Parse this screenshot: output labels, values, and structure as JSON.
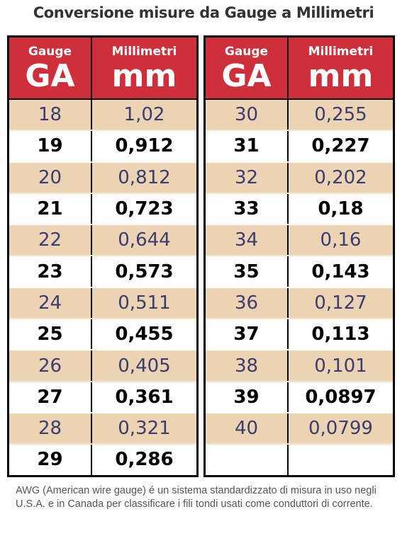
{
  "title": "Conversione misure da Gauge a Millimetri",
  "tables": [
    {
      "header": {
        "gauge_label": "Gauge",
        "gauge_unit": "GA",
        "mm_label": "Millimetri",
        "mm_unit": "mm"
      },
      "rows": [
        [
          "18",
          "1,02"
        ],
        [
          "19",
          "0,912"
        ],
        [
          "20",
          "0,812"
        ],
        [
          "21",
          "0,723"
        ],
        [
          "22",
          "0,644"
        ],
        [
          "23",
          "0,573"
        ],
        [
          "24",
          "0,511"
        ],
        [
          "25",
          "0,455"
        ],
        [
          "26",
          "0,405"
        ],
        [
          "27",
          "0,361"
        ],
        [
          "28",
          "0,321"
        ],
        [
          "29",
          "0,286"
        ]
      ]
    },
    {
      "header": {
        "gauge_label": "Gauge",
        "gauge_unit": "GA",
        "mm_label": "Millimetri",
        "mm_unit": "mm"
      },
      "rows": [
        [
          "30",
          "0,255"
        ],
        [
          "31",
          "0,227"
        ],
        [
          "32",
          "0,202"
        ],
        [
          "33",
          "0,18"
        ],
        [
          "34",
          "0,16"
        ],
        [
          "35",
          "0,143"
        ],
        [
          "36",
          "0,127"
        ],
        [
          "37",
          "0,113"
        ],
        [
          "38",
          "0,101"
        ],
        [
          "39",
          "0,0897"
        ],
        [
          "40",
          "0,0799"
        ]
      ]
    }
  ],
  "footnote": "AWG (American wire gauge) é un sistema standardizzato di misura in uso negli U.S.A. e in Canada per classificare i fili tondi usati come conduttori di corrente."
}
